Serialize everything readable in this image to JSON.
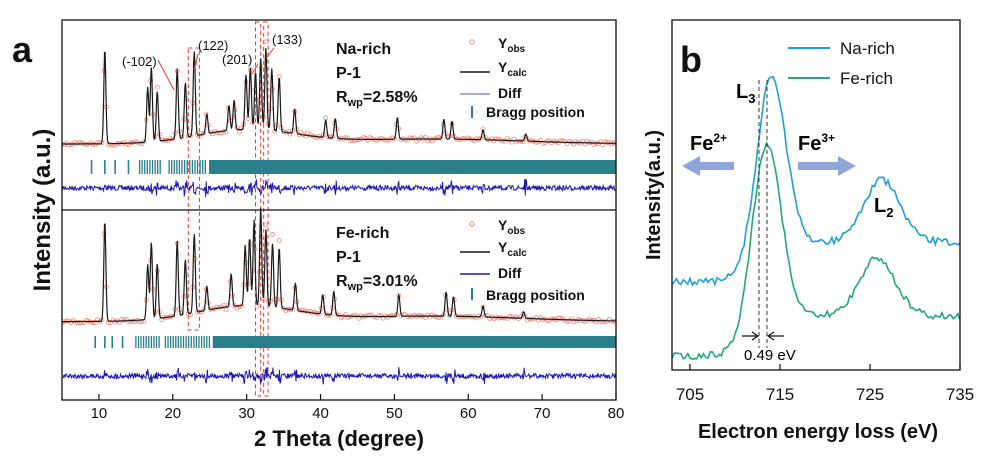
{
  "chart_data": [
    {
      "panel": "a",
      "type": "line",
      "xlabel": "2 Theta (degree)",
      "ylabel": "Intensity (a.u.)",
      "xlim": [
        5,
        80
      ],
      "xticks": [
        "10",
        "20",
        "30",
        "40",
        "50",
        "60",
        "70",
        "80"
      ],
      "peak_annotations": [
        "(-102)",
        "(122)",
        "(201)",
        "(133)"
      ],
      "peak_positions": [
        {
          "label": "(-102)",
          "x": 20.8
        },
        {
          "label": "(122)",
          "x": 22.9
        },
        {
          "label": "(201)",
          "x": 30.4
        },
        {
          "label": "(133)",
          "x": 32.6
        }
      ],
      "highlight_boxes_2theta": [
        [
          22.1,
          23.6
        ],
        [
          31.2,
          31.9
        ],
        [
          32.3,
          32.9
        ]
      ],
      "legend": {
        "yobs_base": "Y",
        "yobs_sub": "obs",
        "ycalc_base": "Y",
        "ycalc_sub": "calc",
        "diff": "Diff",
        "bragg": "Bragg position"
      },
      "rwp_prefix": "R",
      "rwp_sub": "wp",
      "series": [
        {
          "name": "Na-rich",
          "space_group": "P-1",
          "rwp": "=2.58%",
          "peaks": [
            [
              10.8,
              0.95
            ],
            [
              16.6,
              0.55
            ],
            [
              17.1,
              0.75
            ],
            [
              17.9,
              0.5
            ],
            [
              20.6,
              0.7
            ],
            [
              21.7,
              0.55
            ],
            [
              22.9,
              0.85
            ],
            [
              24.6,
              0.2
            ],
            [
              27.6,
              0.25
            ],
            [
              28.3,
              0.3
            ],
            [
              29.9,
              0.55
            ],
            [
              30.5,
              0.62
            ],
            [
              31.2,
              0.58
            ],
            [
              31.9,
              0.72
            ],
            [
              32.6,
              0.82
            ],
            [
              33.4,
              0.62
            ],
            [
              34.4,
              0.55
            ],
            [
              36.5,
              0.25
            ],
            [
              40.7,
              0.18
            ],
            [
              42.0,
              0.2
            ],
            [
              50.4,
              0.22
            ],
            [
              56.7,
              0.2
            ],
            [
              57.8,
              0.18
            ],
            [
              62.0,
              0.1
            ],
            [
              67.8,
              0.07
            ]
          ],
          "bragg_2theta_groups": [
            [
              9.0,
              10.8,
              12.2,
              14.0
            ],
            [
              15.5,
              18.5
            ],
            [
              19.5,
              24.5
            ],
            [
              25.0,
              80.0
            ]
          ]
        },
        {
          "name": "Fe-rich",
          "space_group": "P-1",
          "rwp": "=3.01%",
          "peaks": [
            [
              10.8,
              0.92
            ],
            [
              16.6,
              0.5
            ],
            [
              17.1,
              0.7
            ],
            [
              17.9,
              0.5
            ],
            [
              20.6,
              0.68
            ],
            [
              21.7,
              0.5
            ],
            [
              22.9,
              0.72
            ],
            [
              24.6,
              0.22
            ],
            [
              27.9,
              0.3
            ],
            [
              29.8,
              0.55
            ],
            [
              30.4,
              0.62
            ],
            [
              31.0,
              0.78
            ],
            [
              31.9,
              0.9
            ],
            [
              32.6,
              0.7
            ],
            [
              33.5,
              0.58
            ],
            [
              34.4,
              0.55
            ],
            [
              36.6,
              0.25
            ],
            [
              40.3,
              0.18
            ],
            [
              41.8,
              0.22
            ],
            [
              50.6,
              0.2
            ],
            [
              57.0,
              0.22
            ],
            [
              58.0,
              0.18
            ],
            [
              62.0,
              0.1
            ],
            [
              67.5,
              0.06
            ]
          ],
          "bragg_2theta_groups": [
            [
              9.5,
              10.8,
              11.8,
              13.2
            ],
            [
              15.0,
              18.5
            ],
            [
              19.0,
              25.0
            ],
            [
              25.5,
              80.0
            ]
          ]
        }
      ]
    },
    {
      "panel": "b",
      "type": "line",
      "xlabel": "Electron energy loss (eV)",
      "ylabel": "Intensity(a.u.)",
      "xlim": [
        703,
        735
      ],
      "xticks": [
        "705",
        "715",
        "725",
        "735"
      ],
      "edge_labels": [
        {
          "base": "L",
          "sub": "3"
        },
        {
          "base": "L",
          "sub": "2"
        }
      ],
      "shift_labels": [
        {
          "base": "Fe",
          "sup": "2+"
        },
        {
          "base": "Fe",
          "sup": "3+"
        }
      ],
      "shift_annotation": "0.49 eV",
      "series": [
        {
          "name": "Na-rich",
          "color": "#1f9fd8",
          "L3_peak_eV": 714.0,
          "L2_peak_eV": 726.3
        },
        {
          "name": "Fe-rich",
          "color": "#22a879",
          "L3_peak_eV": 713.5,
          "L2_peak_eV": 725.8
        }
      ]
    }
  ],
  "colors": {
    "yobs": "#f08a7a",
    "ycalc": "#1a1a1a",
    "diff": "#1c1cb4",
    "bragg": "#2a7f8c",
    "box": "#e83a2a",
    "arrow": "#8fa6d8"
  }
}
